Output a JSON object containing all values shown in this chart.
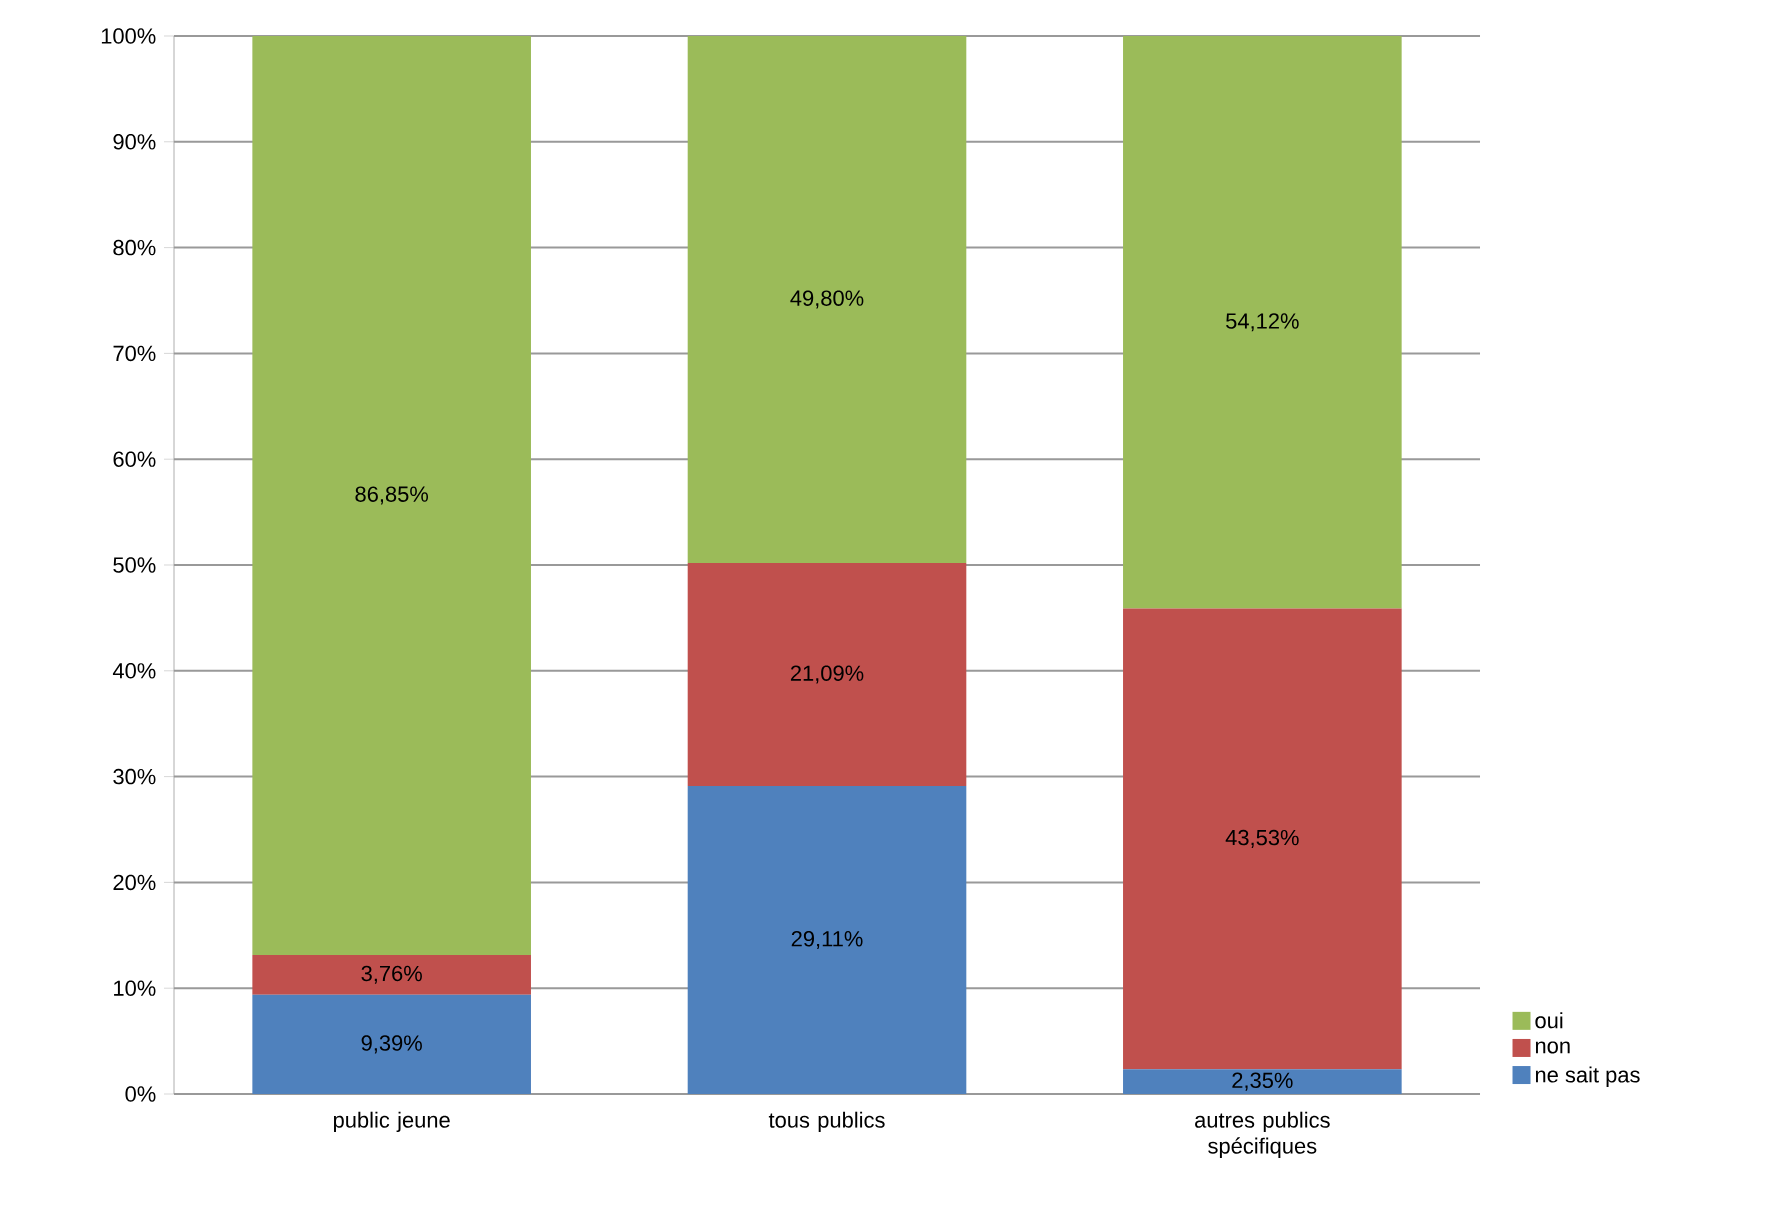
{
  "chart_data": {
    "type": "bar",
    "stacked": true,
    "categories": [
      "public jeune",
      "tous publics",
      "autres publics spécifiques"
    ],
    "series": [
      {
        "name": "ne sait pas",
        "color": "#4f81bd",
        "values": [
          9.39,
          29.11,
          2.35
        ],
        "value_labels": [
          "9,39%",
          "29,11%",
          "2,35%"
        ]
      },
      {
        "name": "non",
        "color": "#c0504d",
        "values": [
          3.76,
          21.09,
          43.53
        ],
        "value_labels": [
          "3,76%",
          "21,09%",
          "43,53%"
        ]
      },
      {
        "name": "oui",
        "color": "#9bbb59",
        "values": [
          86.85,
          49.8,
          54.12
        ],
        "value_labels": [
          "86,85%",
          "49,80%",
          "54,12%"
        ]
      }
    ],
    "ylim": [
      0,
      100
    ],
    "yticks": [
      {
        "value": 0,
        "label": "0%"
      },
      {
        "value": 10,
        "label": "10%"
      },
      {
        "value": 20,
        "label": "20%"
      },
      {
        "value": 30,
        "label": "30%"
      },
      {
        "value": 40,
        "label": "40%"
      },
      {
        "value": 50,
        "label": "50%"
      },
      {
        "value": 60,
        "label": "60%"
      },
      {
        "value": 70,
        "label": "70%"
      },
      {
        "value": 80,
        "label": "80%"
      },
      {
        "value": 90,
        "label": "90%"
      },
      {
        "value": 100,
        "label": "100%"
      }
    ],
    "grid": "y",
    "legend": "right"
  }
}
